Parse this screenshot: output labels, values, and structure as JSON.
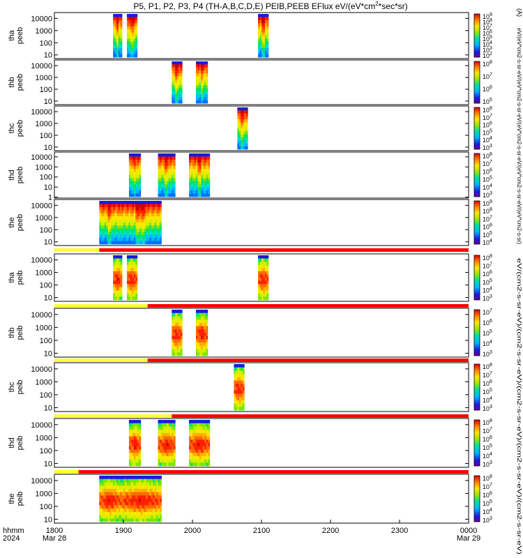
{
  "chart_data": {
    "type": "heatmap",
    "title": "P5, P1, P2, P3, P4 (TH-A,B,C,D,E) PEIB,PEEB EFlux eV/(eV*cm2*sec*sr)",
    "title_parts": {
      "main": "P5, P1, P2, P3, P4 (TH-A,B,C,D,E) PEIB,PEEB EFlux eV/(eV*cm",
      "sup": "2",
      "tail": "*sec*sr)"
    },
    "x_ticks": [
      "1800",
      "1900",
      "2000",
      "2100",
      "2200",
      "2300",
      "0000"
    ],
    "x_sub_left": "Mar 28",
    "x_sub_right": "Mar 29",
    "x_label_top": "hhmm",
    "x_label_bottom": "2024",
    "xlim_hours": [
      18,
      24
    ],
    "colorbar_label_peeb": "eV/(eV*cm2-s-sr-eV/(eV*cm2-s-sr-eV/(eV*cm2-s-sr-eV/(eV*cm2-s-sr-eV/(eV*cm2-s-sr)",
    "colorbar_label_peib": "eV/(cm2-s-sr-eV)/(cm2-s-sr-eV)/(cm2-s-sr-eV)/(cm2-s-sr-eV)/(cm2-s-sr-eV)",
    "colorbar_label_peeb_unit_text": "(A)",
    "panels": [
      {
        "probe": "tha",
        "species": "peeb",
        "y_ticks": [
          "10000",
          "1000",
          "100",
          "10"
        ],
        "ylim": [
          5,
          30000
        ],
        "cbar_ticks": [
          "10^9",
          "10^8",
          "10^7",
          "10^6",
          "10^5",
          "10^4",
          "10^3",
          "10^2"
        ],
        "intervals": [
          [
            18.85,
            18.98
          ],
          [
            19.05,
            19.2
          ],
          [
            20.95,
            21.1
          ]
        ]
      },
      {
        "probe": "thb",
        "species": "peeb",
        "y_ticks": [
          "10000",
          "1000",
          "100",
          "10"
        ],
        "ylim": [
          5,
          30000
        ],
        "cbar_ticks": [
          "10^8",
          "10^7",
          "10^6",
          "10^5"
        ],
        "intervals": [
          [
            19.7,
            19.85
          ],
          [
            20.05,
            20.22
          ]
        ]
      },
      {
        "probe": "thc",
        "species": "peeb",
        "y_ticks": [
          "10000",
          "1000",
          "100",
          "10"
        ],
        "ylim": [
          5,
          30000
        ],
        "cbar_ticks": [
          "10^8",
          "10^7",
          "10^6",
          "10^5",
          "10^4",
          "10^3"
        ],
        "intervals": [
          [
            20.65,
            20.8
          ]
        ]
      },
      {
        "probe": "thd",
        "species": "peeb",
        "y_ticks": [
          "10000",
          "1000",
          "100",
          "10",
          "1"
        ],
        "ylim": [
          0.8,
          30000
        ],
        "cbar_ticks": [
          "10^8",
          "10^7",
          "10^6",
          "10^5",
          "10^4",
          "10^3"
        ],
        "intervals": [
          [
            19.08,
            19.25
          ],
          [
            19.5,
            19.75
          ],
          [
            19.95,
            20.25
          ]
        ]
      },
      {
        "probe": "the",
        "species": "peeb",
        "y_ticks": [
          "10000",
          "1000",
          "100",
          "10"
        ],
        "ylim": [
          5,
          30000
        ],
        "cbar_ticks": [
          "10^9",
          "10^8",
          "10^7",
          "10^6",
          "10^5",
          "10^4"
        ],
        "intervals": [
          [
            18.65,
            18.95
          ],
          [
            18.95,
            19.55
          ]
        ]
      },
      {
        "probe": "tha",
        "species": "peib",
        "y_ticks": [
          "10000",
          "1000",
          "100",
          "10"
        ],
        "ylim": [
          5,
          30000
        ],
        "cbar_ticks": [
          "10^8",
          "10^7",
          "10^6",
          "10^5",
          "10^4",
          "10^3"
        ],
        "intervals": [
          [
            18.85,
            18.98
          ],
          [
            19.05,
            19.2
          ],
          [
            20.95,
            21.1
          ]
        ]
      },
      {
        "probe": "thb",
        "species": "peib",
        "y_ticks": [
          "10000",
          "1000",
          "100",
          "10"
        ],
        "ylim": [
          5,
          30000
        ],
        "cbar_ticks": [
          "10^7",
          "10^6",
          "10^5",
          "10^4",
          "10^3"
        ],
        "intervals": [
          [
            19.7,
            19.85
          ],
          [
            20.05,
            20.22
          ]
        ]
      },
      {
        "probe": "thc",
        "species": "peib",
        "y_ticks": [
          "10000",
          "1000",
          "100",
          "10"
        ],
        "ylim": [
          5,
          30000
        ],
        "cbar_ticks": [
          "10^8",
          "10^7",
          "10^6",
          "10^5",
          "10^4",
          "10^3"
        ],
        "intervals": [
          [
            20.6,
            20.75
          ]
        ]
      },
      {
        "probe": "thd",
        "species": "peib",
        "y_ticks": [
          "10000",
          "1000",
          "100",
          "10"
        ],
        "ylim": [
          5,
          30000
        ],
        "cbar_ticks": [
          "10^8",
          "10^7",
          "10^6",
          "10^5",
          "10^4",
          "10^3"
        ],
        "intervals": [
          [
            19.08,
            19.25
          ],
          [
            19.5,
            19.75
          ],
          [
            19.95,
            20.25
          ]
        ]
      },
      {
        "probe": "the",
        "species": "peib",
        "y_ticks": [
          "10000",
          "1000",
          "100",
          "10"
        ],
        "ylim": [
          5,
          30000
        ],
        "cbar_ticks": [
          "10^8",
          "10^7",
          "10^6",
          "10^5",
          "10^4",
          "10^3"
        ],
        "intervals": [
          [
            18.65,
            18.95
          ],
          [
            18.95,
            19.55
          ]
        ]
      }
    ],
    "mode_bars": [
      {
        "after_panel": 4,
        "yellow_until_hour": 18.65
      },
      {
        "after_panel": 5,
        "yellow_until_hour": 19.35
      },
      {
        "after_panel": 6,
        "yellow_until_hour": 19.35
      },
      {
        "after_panel": 7,
        "yellow_until_hour": 19.7
      },
      {
        "after_panel": 8,
        "yellow_until_hour": 18.35
      }
    ],
    "mode_colors": {
      "yellow": "#ffff33",
      "red": "#ff0000"
    }
  }
}
